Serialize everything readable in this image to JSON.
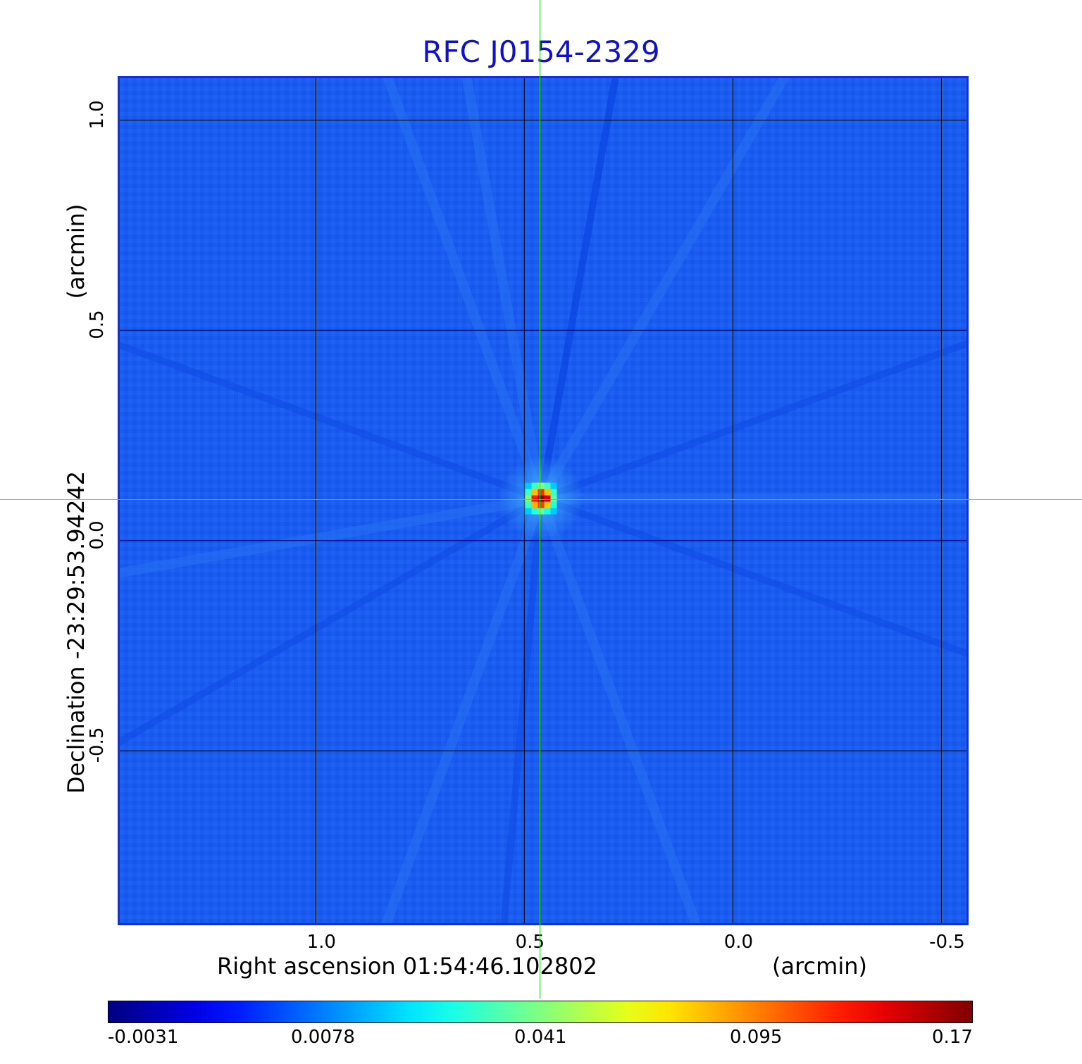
{
  "title": "RFC J0154-2329",
  "map": {
    "colormap": "jet",
    "x_axis": {
      "label": "Right ascension  01:54:46.102802",
      "unit": "(arcmin)",
      "ticks": [
        "1.0",
        "0.5",
        "0.0",
        "-0.5"
      ],
      "tick_values": [
        1.0,
        0.5,
        0.0,
        -0.5
      ],
      "range": [
        1.47,
        -0.56
      ]
    },
    "y_axis": {
      "label": "Declination  -23:29:53.94242",
      "unit": "(arcmin)",
      "ticks": [
        "1.0",
        "0.5",
        "0.0",
        "-0.5"
      ],
      "tick_values": [
        1.0,
        0.5,
        0.0,
        -0.5
      ],
      "range": [
        -0.91,
        1.1
      ]
    },
    "grid": true,
    "source_peak": {
      "ra_offset_arcmin": 0.46,
      "dec_offset_arcmin": 0.1
    },
    "crosshair_color": "#40e040",
    "frame_color": "#1030e0"
  },
  "colorbar": {
    "ticks": [
      "-0.0031",
      "0.0078",
      "0.041",
      "0.095",
      "0.17"
    ],
    "min": -0.0031,
    "max": 0.17
  },
  "colors": {
    "title": "#1010d0",
    "background_map": "#1a5cf0"
  }
}
